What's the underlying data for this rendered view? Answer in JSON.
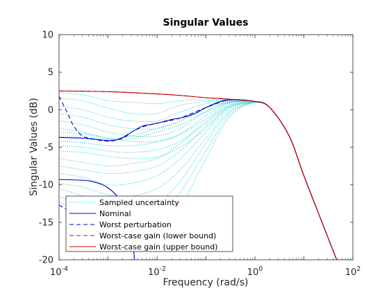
{
  "chart_data": {
    "type": "line",
    "title": "Singular Values",
    "xlabel": "Frequency (rad/s)",
    "ylabel": "Singular Values (dB)",
    "xscale": "log",
    "xlim": [
      0.0001,
      100
    ],
    "ylim": [
      -20,
      10
    ],
    "grid": false,
    "legend_position": "bottom-left",
    "x_ticks": [
      {
        "value": 0.0001,
        "base": "10",
        "exp": "-4"
      },
      {
        "value": 0.01,
        "base": "10",
        "exp": "-2"
      },
      {
        "value": 1,
        "base": "10",
        "exp": "0"
      },
      {
        "value": 100,
        "base": "10",
        "exp": "2"
      }
    ],
    "y_ticks": [
      10,
      5,
      0,
      -5,
      -10,
      -15,
      -20
    ],
    "colors": {
      "sampled": "#00c0c0",
      "nominal": "#0000c8",
      "worst": "#0000c8",
      "lower": "#e00000",
      "upper": "#c80000"
    },
    "series": [
      {
        "name": "Sampled uncertainty",
        "style": "dotted",
        "color": "#00c0c0",
        "curves": [
          {
            "x": [
              0.0001,
              0.0003,
              0.001,
              0.003,
              0.01,
              0.03,
              0.1,
              0.3,
              1,
              2,
              5,
              10,
              30,
              50
            ],
            "y": [
              2.3,
              2.0,
              1.2,
              1.0,
              0.8,
              1.2,
              1.3,
              1.3,
              1.1,
              0.3,
              -3.5,
              -8.8,
              -16.8,
              -20.5
            ]
          },
          {
            "x": [
              0.0001,
              0.0003,
              0.001,
              0.003,
              0.01,
              0.03,
              0.1,
              0.3,
              1,
              2,
              5,
              10,
              30,
              50
            ],
            "y": [
              1.5,
              1.2,
              0.2,
              -0.5,
              -0.5,
              0.6,
              1.1,
              1.3,
              1.1,
              0.3,
              -3.5,
              -8.8,
              -16.8,
              -20.5
            ]
          },
          {
            "x": [
              0.0001,
              0.0003,
              0.001,
              0.003,
              0.01,
              0.03,
              0.1,
              0.3,
              1,
              2,
              5,
              10,
              30,
              50
            ],
            "y": [
              0.5,
              0.0,
              -1.0,
              -1.5,
              -1.5,
              -0.3,
              0.8,
              1.2,
              1.1,
              0.3,
              -3.5,
              -8.8,
              -16.8,
              -20.5
            ]
          },
          {
            "x": [
              0.0001,
              0.0003,
              0.001,
              0.003,
              0.01,
              0.03,
              0.1,
              0.3,
              1,
              2,
              5,
              10,
              30,
              50
            ],
            "y": [
              -0.5,
              -1.0,
              -2.0,
              -2.5,
              -2.5,
              -1.5,
              0.3,
              1.1,
              1.1,
              0.3,
              -3.5,
              -8.8,
              -16.8,
              -20.5
            ]
          },
          {
            "x": [
              0.0001,
              0.0003,
              0.001,
              0.003,
              0.01,
              0.03,
              0.1,
              0.3,
              1,
              2,
              5,
              10,
              30,
              50
            ],
            "y": [
              -1.5,
              -2.0,
              -3.0,
              -3.5,
              -3.5,
              -2.5,
              -0.2,
              1.0,
              1.1,
              0.3,
              -3.5,
              -8.8,
              -16.8,
              -20.5
            ]
          },
          {
            "x": [
              0.0001,
              0.0003,
              0.001,
              0.003,
              0.01,
              0.03,
              0.1,
              0.3,
              1,
              2,
              5,
              10,
              30,
              50
            ],
            "y": [
              -2.5,
              -3.0,
              -3.8,
              -4.2,
              -4.2,
              -3.2,
              -0.8,
              0.9,
              1.1,
              0.3,
              -3.5,
              -8.8,
              -16.8,
              -20.5
            ]
          },
          {
            "x": [
              0.0001,
              0.0003,
              0.001,
              0.003,
              0.01,
              0.03,
              0.1,
              0.3,
              1,
              2,
              5,
              10,
              30,
              50
            ],
            "y": [
              -3.0,
              -3.2,
              -3.8,
              -3.5,
              -2.5,
              -1.5,
              0.2,
              1.0,
              1.1,
              0.3,
              -3.5,
              -8.8,
              -16.8,
              -20.5
            ]
          },
          {
            "x": [
              0.0001,
              0.0003,
              0.001,
              0.003,
              0.01,
              0.03,
              0.1,
              0.3,
              1,
              2,
              5,
              10,
              30,
              50
            ],
            "y": [
              -3.6,
              -3.7,
              -4.0,
              -3.8,
              -3.0,
              -2.0,
              -0.3,
              0.9,
              1.1,
              0.3,
              -3.5,
              -8.8,
              -16.8,
              -20.5
            ]
          },
          {
            "x": [
              0.0001,
              0.0003,
              0.001,
              0.003,
              0.01,
              0.03,
              0.1,
              0.3,
              1,
              2,
              5,
              10,
              30,
              50
            ],
            "y": [
              -4.2,
              -4.4,
              -4.8,
              -4.8,
              -4.3,
              -3.3,
              -1.2,
              0.7,
              1.1,
              0.3,
              -3.5,
              -8.8,
              -16.8,
              -20.5
            ]
          },
          {
            "x": [
              0.0001,
              0.0003,
              0.001,
              0.003,
              0.01,
              0.03,
              0.1,
              0.3,
              1,
              2,
              5,
              10,
              30,
              50
            ],
            "y": [
              -4.8,
              -5.0,
              -5.5,
              -5.7,
              -5.3,
              -4.2,
              -1.8,
              0.5,
              1.1,
              0.3,
              -3.5,
              -8.8,
              -16.8,
              -20.5
            ]
          },
          {
            "x": [
              0.0001,
              0.0003,
              0.001,
              0.003,
              0.01,
              0.03,
              0.1,
              0.3,
              1,
              2,
              5,
              10,
              30,
              50
            ],
            "y": [
              -5.5,
              -5.7,
              -6.2,
              -6.5,
              -6.3,
              -5.0,
              -2.5,
              0.3,
              1.0,
              0.3,
              -3.5,
              -8.8,
              -16.8,
              -20.5
            ]
          },
          {
            "x": [
              0.0001,
              0.0003,
              0.001,
              0.003,
              0.01,
              0.03,
              0.1,
              0.3,
              1,
              2,
              5,
              10,
              30,
              50
            ],
            "y": [
              -6.5,
              -7.0,
              -7.5,
              -7.2,
              -6.5,
              -4.5,
              -1.5,
              0.5,
              1.0,
              0.3,
              -3.5,
              -8.8,
              -16.8,
              -20.5
            ]
          },
          {
            "x": [
              0.0001,
              0.0003,
              0.001,
              0.003,
              0.01,
              0.03,
              0.1,
              0.3,
              1,
              2,
              5,
              10,
              30,
              50
            ],
            "y": [
              -7.5,
              -8.0,
              -8.5,
              -8.3,
              -7.5,
              -5.5,
              -2.2,
              0.3,
              1.0,
              0.3,
              -3.5,
              -8.8,
              -16.8,
              -20.5
            ]
          },
          {
            "x": [
              0.0001,
              0.0003,
              0.001,
              0.003,
              0.01,
              0.03,
              0.1,
              0.3,
              1,
              2,
              5,
              10,
              30,
              50
            ],
            "y": [
              -8.5,
              -9.0,
              -10.0,
              -9.8,
              -8.8,
              -6.5,
              -3.0,
              0.1,
              1.0,
              0.3,
              -3.5,
              -8.8,
              -16.8,
              -20.5
            ]
          },
          {
            "x": [
              0.0001,
              0.0003,
              0.001,
              0.003,
              0.01,
              0.03,
              0.1,
              0.3,
              1,
              2,
              5,
              10,
              30,
              50
            ],
            "y": [
              -9.8,
              -10.3,
              -11.3,
              -11.5,
              -10.5,
              -8.0,
              -3.8,
              -0.2,
              1.0,
              0.3,
              -3.5,
              -8.8,
              -16.8,
              -20.5
            ]
          },
          {
            "x": [
              0.0001,
              0.0003,
              0.001,
              0.003,
              0.01,
              0.03,
              0.1,
              0.3,
              1,
              2,
              5,
              10,
              30,
              50
            ],
            "y": [
              -10.5,
              -11.5,
              -13.0,
              -13.5,
              -12.5,
              -9.5,
              -4.5,
              -0.4,
              1.0,
              0.3,
              -3.5,
              -8.8,
              -16.8,
              -20.5
            ]
          },
          {
            "x": [
              0.0001,
              0.0003,
              0.001,
              0.003,
              0.01,
              0.03,
              0.1,
              0.3,
              1,
              2,
              5,
              10,
              30,
              50
            ],
            "y": [
              -11.5,
              -13.0,
              -15.0,
              -16.0,
              -14.5,
              -11.0,
              -5.5,
              -0.7,
              1.0,
              0.3,
              -3.5,
              -8.8,
              -16.8,
              -20.5
            ]
          },
          {
            "x": [
              0.0001,
              0.0003,
              0.001,
              0.003,
              0.01,
              0.03,
              0.1,
              0.3,
              1,
              2,
              5,
              10,
              30,
              50
            ],
            "y": [
              -12.3,
              -14.0,
              -16.5,
              -18.5,
              -17.0,
              -13.0,
              -6.5,
              -1.0,
              1.0,
              0.3,
              -3.5,
              -8.8,
              -16.8,
              -20.5
            ]
          }
        ]
      },
      {
        "name": "Nominal",
        "style": "solid",
        "color": "#0000c8",
        "curves": [
          {
            "x": [
              0.0001,
              0.0003,
              0.001,
              0.0015,
              0.002,
              0.003,
              0.005,
              0.007,
              0.01,
              0.02,
              0.03,
              0.05,
              0.07,
              0.1,
              0.2,
              0.3,
              0.5,
              1,
              2,
              5,
              10,
              30,
              50
            ],
            "y": [
              -3.7,
              -3.8,
              -4.1,
              -4.0,
              -3.7,
              -3.0,
              -2.2,
              -2.0,
              -1.8,
              -1.3,
              -1.1,
              -0.7,
              -0.3,
              0.3,
              1.1,
              1.3,
              1.3,
              1.1,
              0.3,
              -3.5,
              -8.8,
              -16.8,
              -20.5
            ]
          },
          {
            "x": [
              0.0001,
              0.0003,
              0.0005,
              0.001,
              0.002,
              0.003,
              0.0035
            ],
            "y": [
              -9.3,
              -9.4,
              -9.6,
              -10.4,
              -12.5,
              -15.5,
              -20.5
            ]
          }
        ]
      },
      {
        "name": "Worst perturbation",
        "style": "dashed",
        "color": "#0000c8",
        "curves": [
          {
            "x": [
              0.0001,
              0.00015,
              0.0002,
              0.0003,
              0.0005,
              0.001,
              0.002,
              0.003,
              0.005,
              0.01,
              0.03,
              0.1,
              0.3,
              1,
              2,
              5,
              10,
              30,
              50
            ],
            "y": [
              1.8,
              -0.5,
              -2.2,
              -3.5,
              -3.9,
              -4.2,
              -3.8,
              -3.0,
              -2.3,
              -1.8,
              -1.1,
              0.3,
              1.3,
              1.1,
              0.3,
              -3.5,
              -8.8,
              -16.8,
              -20.5
            ]
          },
          {
            "x": [
              0.0001,
              0.0002,
              0.0003,
              0.0005,
              0.0007,
              0.001,
              0.0012
            ],
            "y": [
              -12.7,
              -14.0,
              -16.0,
              -18.0,
              -18.8,
              -17.5,
              -17.0
            ]
          }
        ]
      },
      {
        "name": "Worst-case gain (lower bound)",
        "style": "dashed",
        "color": "#e00000",
        "curves": [
          {
            "x": [
              0.0001,
              0.001,
              0.01,
              0.03,
              0.1,
              0.3,
              1,
              2,
              5,
              10,
              30,
              50
            ],
            "y": [
              2.5,
              2.4,
              2.1,
              1.9,
              1.6,
              1.4,
              1.1,
              0.3,
              -3.5,
              -8.8,
              -16.8,
              -20.5
            ]
          }
        ]
      },
      {
        "name": "Worst-case gain (upper bound)",
        "style": "solid",
        "color": "#c80000",
        "curves": [
          {
            "x": [
              0.0001,
              0.001,
              0.01,
              0.03,
              0.1,
              0.3,
              1,
              2,
              5,
              10,
              30,
              50
            ],
            "y": [
              2.5,
              2.4,
              2.1,
              1.9,
              1.6,
              1.4,
              1.1,
              0.3,
              -3.5,
              -8.8,
              -16.8,
              -20.5
            ]
          }
        ]
      }
    ]
  }
}
